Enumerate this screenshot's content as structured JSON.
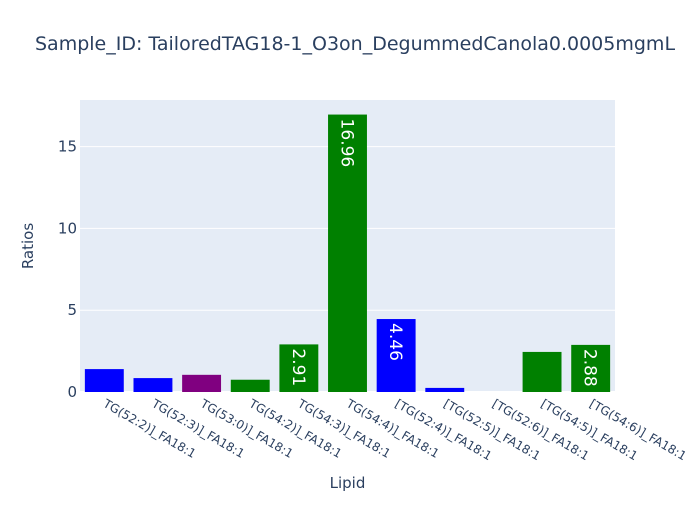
{
  "chart_data": {
    "type": "bar",
    "title": "Sample_ID: TailoredTAG18-1_O3on_DegummedCanola0.0005mgmL",
    "xlabel": "Lipid",
    "ylabel": "Ratios",
    "ylim": [
      0,
      17.85
    ],
    "yticks": [
      0,
      5,
      10,
      15
    ],
    "grid": true,
    "legend": "none",
    "categories": [
      "TG(52:2)]_FA18:1",
      "TG(52:3)]_FA18:1",
      "TG(53:0)]_FA18:1",
      "TG(54:2)]_FA18:1",
      "TG(54:3)]_FA18:1",
      "TG(54:4)]_FA18:1",
      "[TG(52:4)]_FA18:1",
      "[TG(52:5)]_FA18:1",
      "[TG(52:6)]_FA18:1",
      "[TG(54:5)]_FA18:1",
      "[TG(54:6)]_FA18:1"
    ],
    "values": [
      1.4,
      0.85,
      1.05,
      0.75,
      2.91,
      16.96,
      4.46,
      0.25,
      0,
      2.45,
      2.88
    ],
    "data_labels": [
      "",
      "",
      "",
      "",
      "2.91",
      "16.96",
      "4.46",
      "",
      "",
      "",
      "2.88"
    ],
    "colors": [
      "#0000ff",
      "#0000ff",
      "#800080",
      "#008000",
      "#008000",
      "#008000",
      "#0000ff",
      "#0000ff",
      "#0000ff",
      "#008000",
      "#008000"
    ],
    "plot_background": "#e5ecf6"
  }
}
